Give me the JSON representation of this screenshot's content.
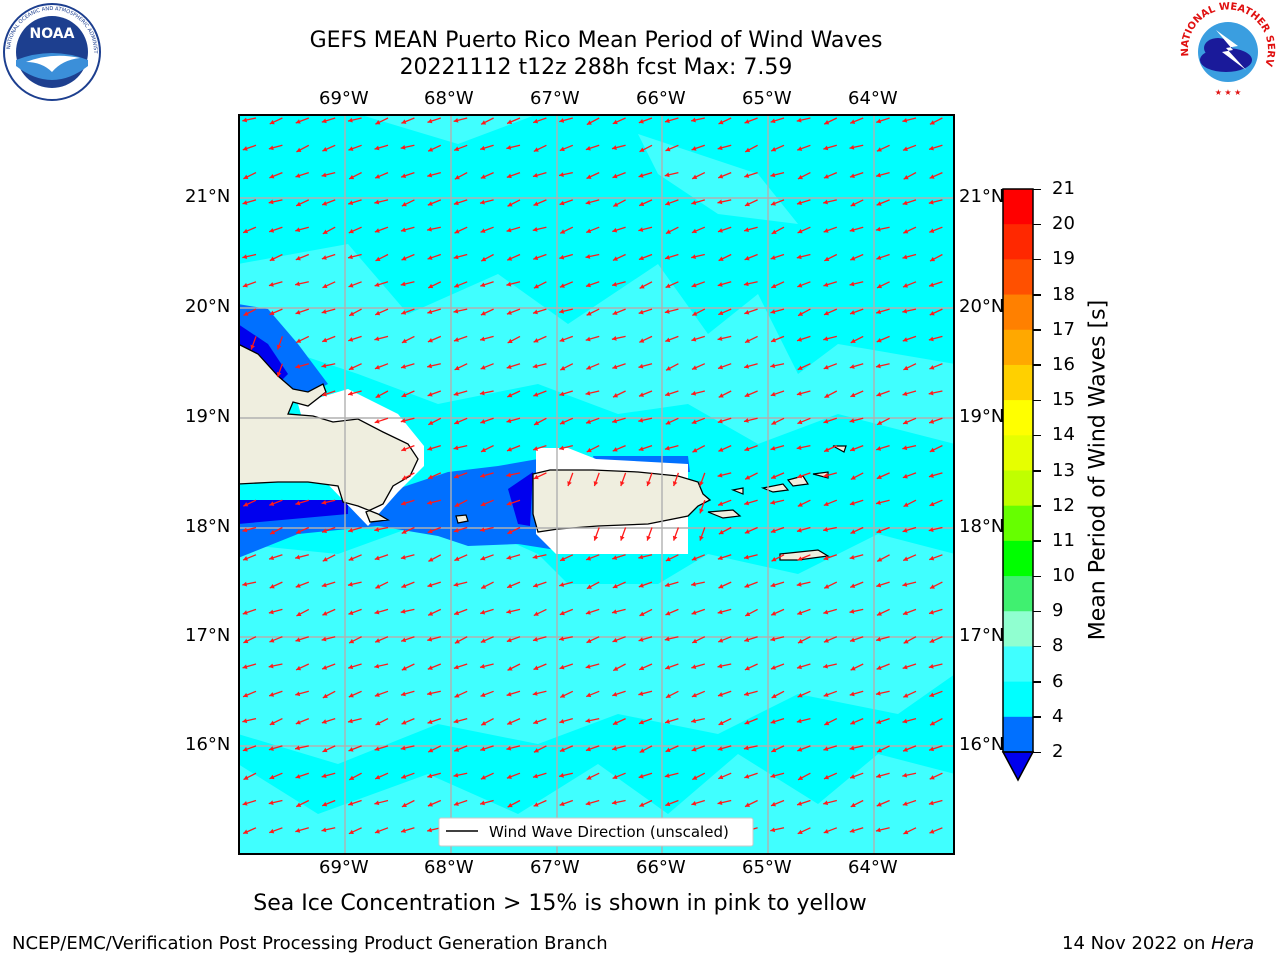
{
  "header": {
    "title_line1": "GEFS MEAN Puerto Rico Mean Period of Wind Waves",
    "title_line2": "20221112 t12z 288h fcst   Max: 7.59"
  },
  "logos": {
    "left": "NOAA",
    "left_ring": "NATIONAL OCEANIC AND ATMOSPHERIC ADMINISTRATION · U.S. DEPARTMENT OF COMMERCE",
    "right_ring": "NATIONAL WEATHER SERVICE"
  },
  "map": {
    "lon_labels": [
      "69°W",
      "68°W",
      "67°W",
      "66°W",
      "65°W",
      "64°W"
    ],
    "lat_labels": [
      "21°N",
      "20°N",
      "19°N",
      "18°N",
      "17°N",
      "16°N"
    ],
    "legend_label": "Wind Wave Direction (unscaled)",
    "colors": {
      "ocean_4_6": "#00ffff",
      "ocean_6_8": "#40ffff",
      "ocean_2_4": "#0070ff",
      "ocean_lt_2": "#0000ee",
      "land": "#efeedf",
      "arrow": "#ff1a1a",
      "grid": "#b0b0b0"
    }
  },
  "colorbar": {
    "label": "Mean Period of Wind Waves [s]",
    "ticks": [
      "21",
      "20",
      "19",
      "18",
      "17",
      "16",
      "15",
      "14",
      "13",
      "12",
      "11",
      "10",
      "9",
      "8",
      "6",
      "4",
      "2"
    ],
    "colors": [
      "#ff0000",
      "#ff2800",
      "#ff5000",
      "#ff8000",
      "#ffa800",
      "#ffd000",
      "#ffff00",
      "#e6ff00",
      "#c0ff00",
      "#66ff00",
      "#00ff00",
      "#40f070",
      "#90ffd0",
      "#40ffff",
      "#00ffff",
      "#0070ff"
    ],
    "extend_color": "#0000ee"
  },
  "note": "Sea Ice Concentration > 15% is shown in pink to yellow",
  "footer": {
    "left": "NCEP/EMC/Verification Post Processing Product Generation Branch",
    "date": "14 Nov 2022 on",
    "machine": "Hera"
  }
}
